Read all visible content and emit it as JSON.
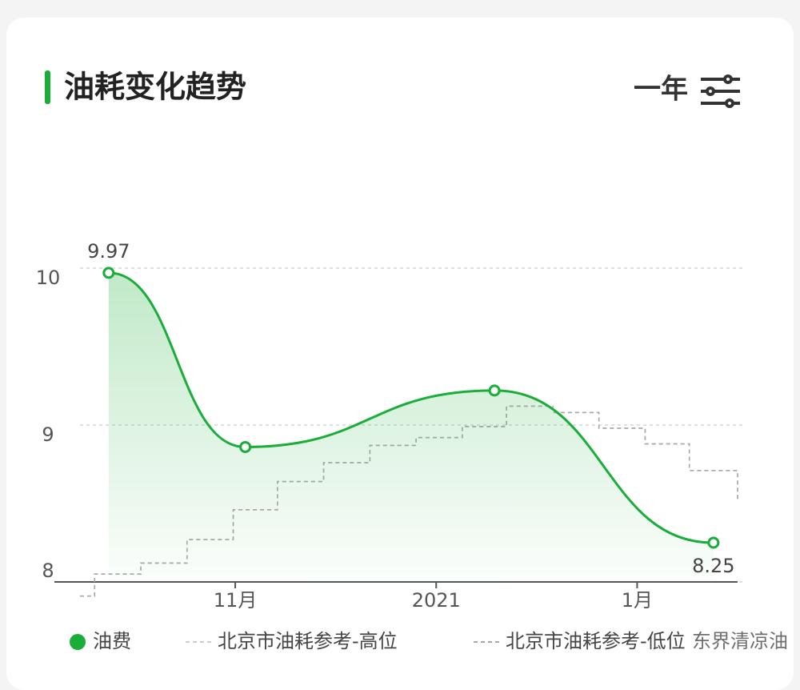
{
  "header": {
    "title": "油耗变化趋势",
    "period": "一年"
  },
  "chart_data": {
    "type": "line",
    "smooth": true,
    "x": [
      0.37,
      1.05,
      2.29,
      3.38
    ],
    "series": [
      {
        "name": "油费",
        "color": "#1aad3a",
        "values": [
          9.97,
          8.86,
          9.22,
          8.25
        ],
        "value_labels": [
          "9.97",
          null,
          null,
          "8.25"
        ]
      },
      {
        "name": "北京市油耗参考-高位",
        "color": "#cccccc",
        "drawstyle": "steps-post",
        "x": [
          0.227,
          0.3,
          0.53,
          0.76,
          0.99,
          1.21,
          1.44,
          1.67,
          1.9,
          2.13,
          2.35,
          2.58,
          2.81,
          3.04,
          3.26,
          3.5
        ],
        "values": [
          7.91,
          8.05,
          8.12,
          8.27,
          8.46,
          8.64,
          8.76,
          8.87,
          8.92,
          8.99,
          9.12,
          9.08,
          8.98,
          8.88,
          8.71,
          8.52
        ]
      },
      {
        "name": "北京市油耗参考-低位",
        "color": "#a8a8a8",
        "drawstyle": "steps-post",
        "x": [
          0.227,
          0.3,
          0.53,
          0.76,
          0.99,
          1.21,
          1.44,
          1.67,
          1.9,
          2.13,
          2.35,
          2.58,
          2.81,
          3.04,
          3.26,
          3.5
        ],
        "values": [
          7.91,
          8.05,
          8.12,
          8.27,
          8.46,
          8.64,
          8.76,
          8.87,
          8.92,
          8.99,
          9.12,
          9.08,
          8.98,
          8.88,
          8.71,
          8.52
        ]
      }
    ],
    "xlim": [
      0.1,
      3.5
    ],
    "xticks": [
      {
        "value": 1,
        "label": "11月"
      },
      {
        "value": 2,
        "label": "2021"
      },
      {
        "value": 3,
        "label": "1月"
      }
    ],
    "ylim": [
      8,
      10
    ],
    "yticks": [
      8,
      9,
      10
    ],
    "grid": true
  },
  "watermark": "东界清凉油"
}
